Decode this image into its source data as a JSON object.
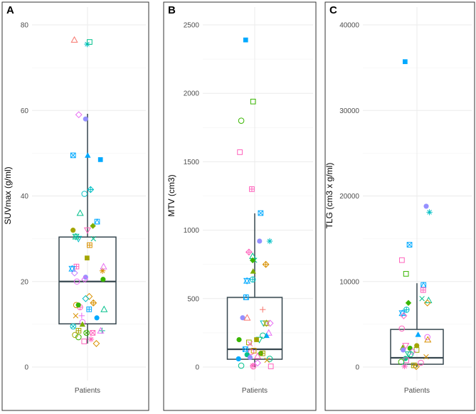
{
  "colors": {
    "cyan": "#00BFC4",
    "teal": "#00C08B",
    "salmon": "#F8766D",
    "violet": "#E76BF3",
    "lilac": "#C77CFF",
    "purple": "#9590FF",
    "blue": "#00A9FF",
    "olive": "#7CAE00",
    "mustard": "#A3A500",
    "orange": "#D89000",
    "pink": "#FF62BC",
    "green": "#39B600",
    "box": "#37474F",
    "grid": "#EBEBEB"
  },
  "chart_data": [
    {
      "type": "boxplot",
      "panel_label": "A",
      "ylabel": "SUVmax (g/ml)",
      "category": "Patients",
      "ylim": [
        -7,
        84
      ],
      "yticks": [
        0,
        20,
        40,
        60,
        80
      ],
      "minor_yticks": [
        10,
        30,
        50,
        70
      ],
      "box": {
        "q1": 10.1,
        "median": 20,
        "q3": 30.4,
        "whisker_low": 5.5,
        "whisker_high": 59.2
      },
      "points": [
        [
          75.5,
          "asterisk",
          "cyan"
        ],
        [
          76,
          "square",
          "teal"
        ],
        [
          76.5,
          "triangle",
          "salmon"
        ],
        [
          59,
          "diamond",
          "violet"
        ],
        [
          58,
          "circle-filled",
          "purple"
        ],
        [
          49.5,
          "triangle-filled",
          "blue"
        ],
        [
          49.5,
          "square-x",
          "blue"
        ],
        [
          48.5,
          "square-filled",
          "blue"
        ],
        [
          41.5,
          "diamond-plus",
          "cyan"
        ],
        [
          40.5,
          "circle",
          "cyan"
        ],
        [
          36,
          "triangle",
          "teal"
        ],
        [
          34,
          "square-tri",
          "blue"
        ],
        [
          33,
          "diamond-filled",
          "olive"
        ],
        [
          32,
          "circle-filled",
          "mustard"
        ],
        [
          32,
          "tri-down",
          "pink"
        ],
        [
          30,
          "tri-down",
          "cyan"
        ],
        [
          30,
          "x",
          "teal"
        ],
        [
          30.5,
          "star",
          "teal"
        ],
        [
          28.5,
          "square-plus",
          "orange"
        ],
        [
          25.5,
          "square-filled",
          "mustard"
        ],
        [
          23.5,
          "square-plus",
          "pink"
        ],
        [
          23,
          "star",
          "blue"
        ],
        [
          22.5,
          "asterisk",
          "orange"
        ],
        [
          23.5,
          "triangle",
          "violet"
        ],
        [
          22,
          "diamond",
          "lilac"
        ],
        [
          21,
          "circle-filled",
          "purple"
        ],
        [
          20.5,
          "circle-filled",
          "green"
        ],
        [
          20,
          "circle",
          "violet"
        ],
        [
          20.5,
          "diamond",
          "violet"
        ],
        [
          16.5,
          "diamond",
          "orange"
        ],
        [
          15,
          "diamond-plus",
          "orange"
        ],
        [
          14,
          "circle-plus",
          "pink"
        ],
        [
          14.5,
          "circle",
          "orange"
        ],
        [
          13.5,
          "triangle",
          "teal"
        ],
        [
          16,
          "diamond",
          "cyan"
        ],
        [
          14.5,
          "circle-filled",
          "green"
        ],
        [
          13.5,
          "square-plus",
          "blue"
        ],
        [
          12,
          "plus",
          "violet"
        ],
        [
          12,
          "x",
          "orange"
        ],
        [
          11.5,
          "circle-filled",
          "blue"
        ],
        [
          10.5,
          "circle",
          "violet"
        ],
        [
          10,
          "triangle-filled",
          "olive"
        ],
        [
          9.5,
          "circle-x",
          "cyan"
        ],
        [
          8.5,
          "plus",
          "teal"
        ],
        [
          8.5,
          "square-plus",
          "mustard"
        ],
        [
          8.5,
          "triangle",
          "violet"
        ],
        [
          8,
          "circle-x",
          "green"
        ],
        [
          7,
          "circle",
          "green"
        ],
        [
          6.5,
          "asterisk",
          "pink"
        ],
        [
          6,
          "square",
          "pink"
        ],
        [
          5.5,
          "diamond",
          "orange"
        ],
        [
          8,
          "square-x",
          "pink"
        ],
        [
          7.5,
          "circle",
          "mustard"
        ]
      ]
    },
    {
      "type": "boxplot",
      "panel_label": "B",
      "ylabel": "MTV (cm3)",
      "category": "Patients",
      "ylim": [
        -220,
        2620
      ],
      "yticks": [
        0,
        500,
        1000,
        1500,
        2000,
        2500
      ],
      "minor_yticks": [
        250,
        750,
        1250,
        1750,
        2250
      ],
      "box": {
        "q1": 57,
        "median": 130,
        "q3": 509,
        "whisker_low": 0,
        "whisker_high": 1123
      },
      "points": [
        [
          2390,
          "square-filled",
          "blue"
        ],
        [
          1940,
          "square",
          "green"
        ],
        [
          1800,
          "circle",
          "green"
        ],
        [
          1570,
          "square",
          "pink"
        ],
        [
          1300,
          "square-plus",
          "pink"
        ],
        [
          1125,
          "square-x",
          "blue"
        ],
        [
          920,
          "circle-filled",
          "purple"
        ],
        [
          920,
          "asterisk",
          "cyan"
        ],
        [
          840,
          "diamond-plus",
          "pink"
        ],
        [
          810,
          "triangle",
          "teal"
        ],
        [
          780,
          "x",
          "teal"
        ],
        [
          780,
          "diamond-filled",
          "green"
        ],
        [
          750,
          "diamond-plus",
          "orange"
        ],
        [
          700,
          "triangle-filled",
          "olive"
        ],
        [
          640,
          "circle-plus",
          "cyan"
        ],
        [
          630,
          "star",
          "blue"
        ],
        [
          510,
          "square-tri",
          "blue"
        ],
        [
          420,
          "plus",
          "salmon"
        ],
        [
          360,
          "circle-filled",
          "purple"
        ],
        [
          360,
          "triangle",
          "salmon"
        ],
        [
          320,
          "tri-down",
          "cyan"
        ],
        [
          320,
          "star",
          "mustard"
        ],
        [
          320,
          "diamond",
          "violet"
        ],
        [
          250,
          "triangle",
          "violet"
        ],
        [
          230,
          "triangle-filled",
          "blue"
        ],
        [
          230,
          "circle",
          "teal"
        ],
        [
          200,
          "tri-down",
          "teal"
        ],
        [
          200,
          "square-filled",
          "mustard"
        ],
        [
          200,
          "circle-filled",
          "green"
        ],
        [
          180,
          "square",
          "mustard"
        ],
        [
          170,
          "x",
          "pink"
        ],
        [
          130,
          "square-x",
          "blue"
        ],
        [
          110,
          "circle",
          "pink"
        ],
        [
          100,
          "circle-filled",
          "green"
        ],
        [
          100,
          "square-plus",
          "mustard"
        ],
        [
          90,
          "circle-filled",
          "teal"
        ],
        [
          60,
          "circle",
          "teal"
        ],
        [
          60,
          "circle-filled",
          "blue"
        ],
        [
          70,
          "circle-filled",
          "purple"
        ],
        [
          80,
          "triangle",
          "pink"
        ],
        [
          10,
          "asterisk",
          "pink"
        ],
        [
          10,
          "circle",
          "teal"
        ],
        [
          5,
          "square",
          "pink"
        ],
        [
          5,
          "circle",
          "pink"
        ],
        [
          50,
          "x",
          "orange"
        ],
        [
          30,
          "diamond",
          "violet"
        ],
        [
          120,
          "square",
          "orange"
        ]
      ]
    },
    {
      "type": "boxplot",
      "panel_label": "C",
      "ylabel": "TLG (cm3 x g/ml)",
      "category": "Patients",
      "ylim": [
        -3500,
        42000
      ],
      "yticks": [
        0,
        10000,
        20000,
        30000,
        40000
      ],
      "minor_yticks": [
        5000,
        15000,
        25000,
        35000
      ],
      "box": {
        "q1": 330,
        "median": 1080,
        "q3": 4400,
        "whisker_low": 0,
        "whisker_high": 9800
      },
      "points": [
        [
          35700,
          "square-filled",
          "blue"
        ],
        [
          18800,
          "circle-filled",
          "purple"
        ],
        [
          18100,
          "asterisk",
          "cyan"
        ],
        [
          14300,
          "square-x",
          "blue"
        ],
        [
          12500,
          "square",
          "pink"
        ],
        [
          10900,
          "square",
          "green"
        ],
        [
          9600,
          "square-tri",
          "blue"
        ],
        [
          9000,
          "square-plus",
          "pink"
        ],
        [
          8000,
          "x",
          "teal"
        ],
        [
          7800,
          "triangle",
          "teal"
        ],
        [
          7500,
          "diamond-filled",
          "green"
        ],
        [
          7500,
          "diamond",
          "orange"
        ],
        [
          6700,
          "circle-plus",
          "cyan"
        ],
        [
          6300,
          "star",
          "blue"
        ],
        [
          6000,
          "diamond",
          "pink"
        ],
        [
          4500,
          "circle",
          "pink"
        ],
        [
          3800,
          "triangle-filled",
          "blue"
        ],
        [
          3500,
          "circle",
          "violet"
        ],
        [
          3200,
          "triangle",
          "orange"
        ],
        [
          2500,
          "tri-down",
          "pink"
        ],
        [
          2500,
          "circle-filled",
          "mustard"
        ],
        [
          2300,
          "triangle-filled",
          "olive"
        ],
        [
          2200,
          "circle-filled",
          "green"
        ],
        [
          2000,
          "square",
          "mustard"
        ],
        [
          2000,
          "circle-filled",
          "purple"
        ],
        [
          1800,
          "diamond",
          "violet"
        ],
        [
          1500,
          "tri-down",
          "teal"
        ],
        [
          1500,
          "circle",
          "teal"
        ],
        [
          1200,
          "x",
          "orange"
        ],
        [
          1000,
          "circle-filled",
          "teal"
        ],
        [
          800,
          "square",
          "pink"
        ],
        [
          600,
          "circle",
          "green"
        ],
        [
          500,
          "circle",
          "pink"
        ],
        [
          300,
          "plus",
          "teal"
        ],
        [
          200,
          "square-plus",
          "mustard"
        ],
        [
          100,
          "asterisk",
          "pink"
        ],
        [
          50,
          "diamond",
          "orange"
        ]
      ]
    }
  ]
}
